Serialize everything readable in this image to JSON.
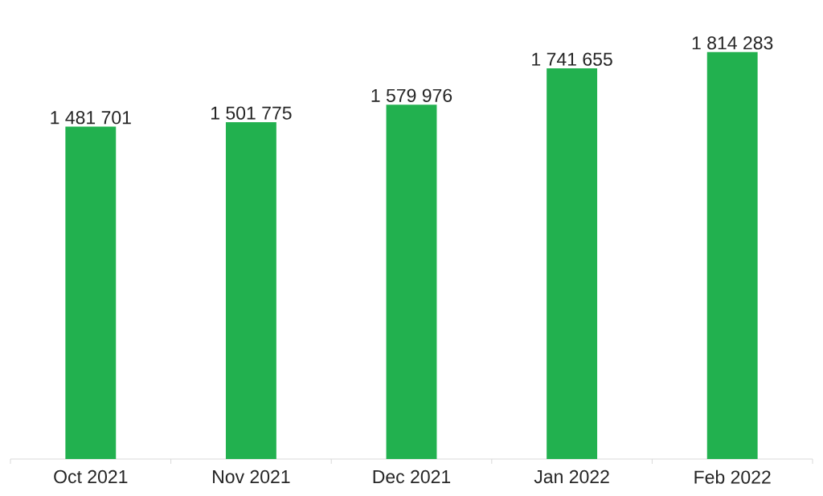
{
  "chart_data": {
    "type": "bar",
    "categories": [
      "Oct 2021",
      "Nov 2021",
      "Dec 2021",
      "Jan 2022",
      "Feb 2022"
    ],
    "values": [
      1481701,
      1501775,
      1579976,
      1741655,
      1814283
    ],
    "value_labels": [
      "1 481 701",
      "1 501 775",
      "1 579 976",
      "1 741 655",
      "1 814 283"
    ],
    "color": "#22b14f",
    "tick_labels": "x"
  }
}
